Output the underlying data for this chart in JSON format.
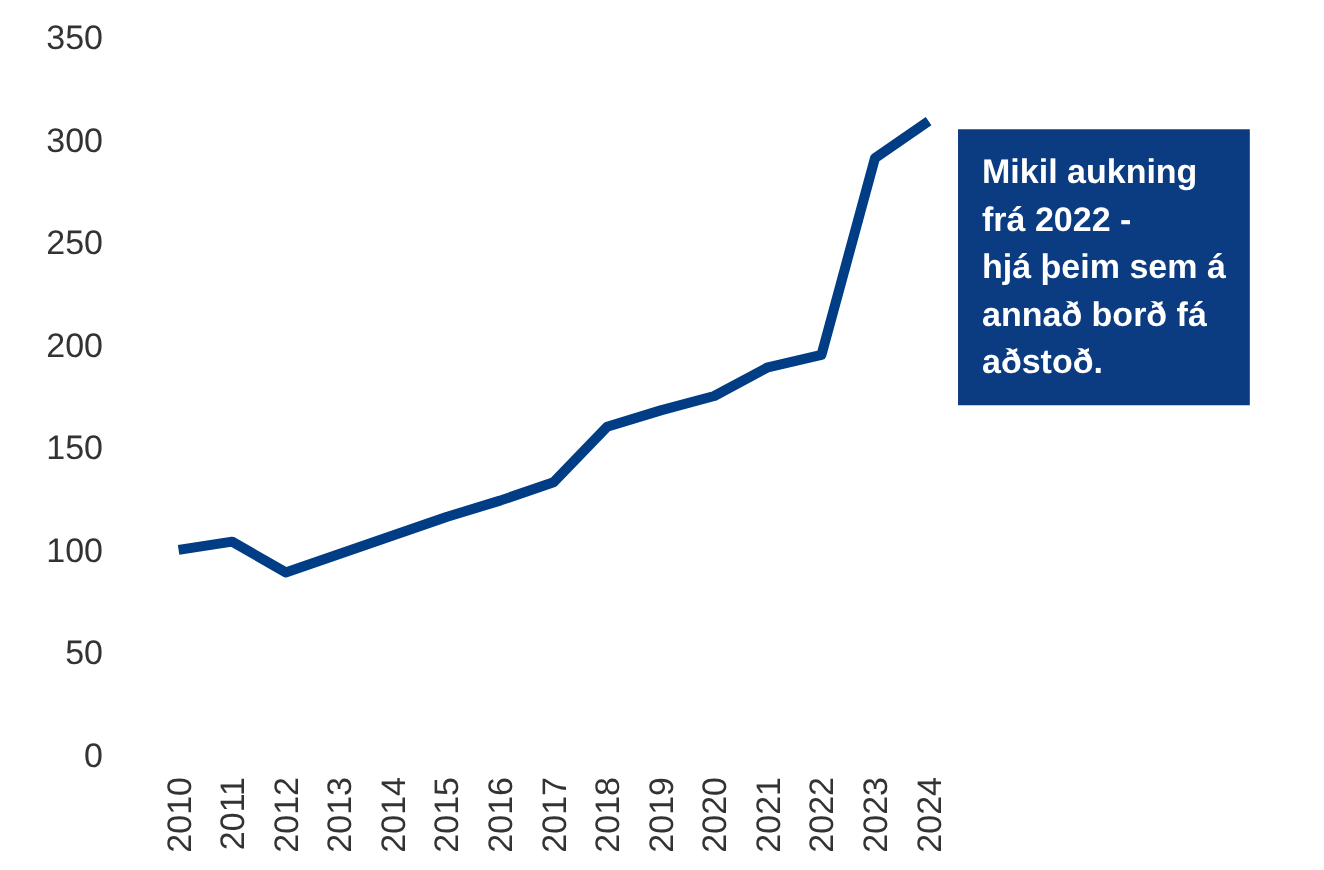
{
  "chart_data": {
    "type": "line",
    "categories": [
      "2010",
      "2011",
      "2012",
      "2013",
      "2014",
      "2015",
      "2016",
      "2017",
      "2018",
      "2019",
      "2020",
      "2021",
      "2022",
      "2023",
      "2024"
    ],
    "series": [
      {
        "color": "#003d85",
        "values": [
          100,
          104,
          89,
          98,
          107,
          116,
          124,
          133,
          160,
          168,
          175,
          189,
          195,
          291,
          309
        ]
      }
    ],
    "ylim": [
      0,
      350
    ],
    "yticks": [
      0,
      50,
      100,
      150,
      200,
      250,
      300,
      350
    ],
    "grid": false,
    "marker": "none",
    "line_style": "solid",
    "annotations": [
      "Mikil aukning\nfrá 2022  -\nhjá þeim sem á\nannað borð fá\naðstoð."
    ]
  }
}
